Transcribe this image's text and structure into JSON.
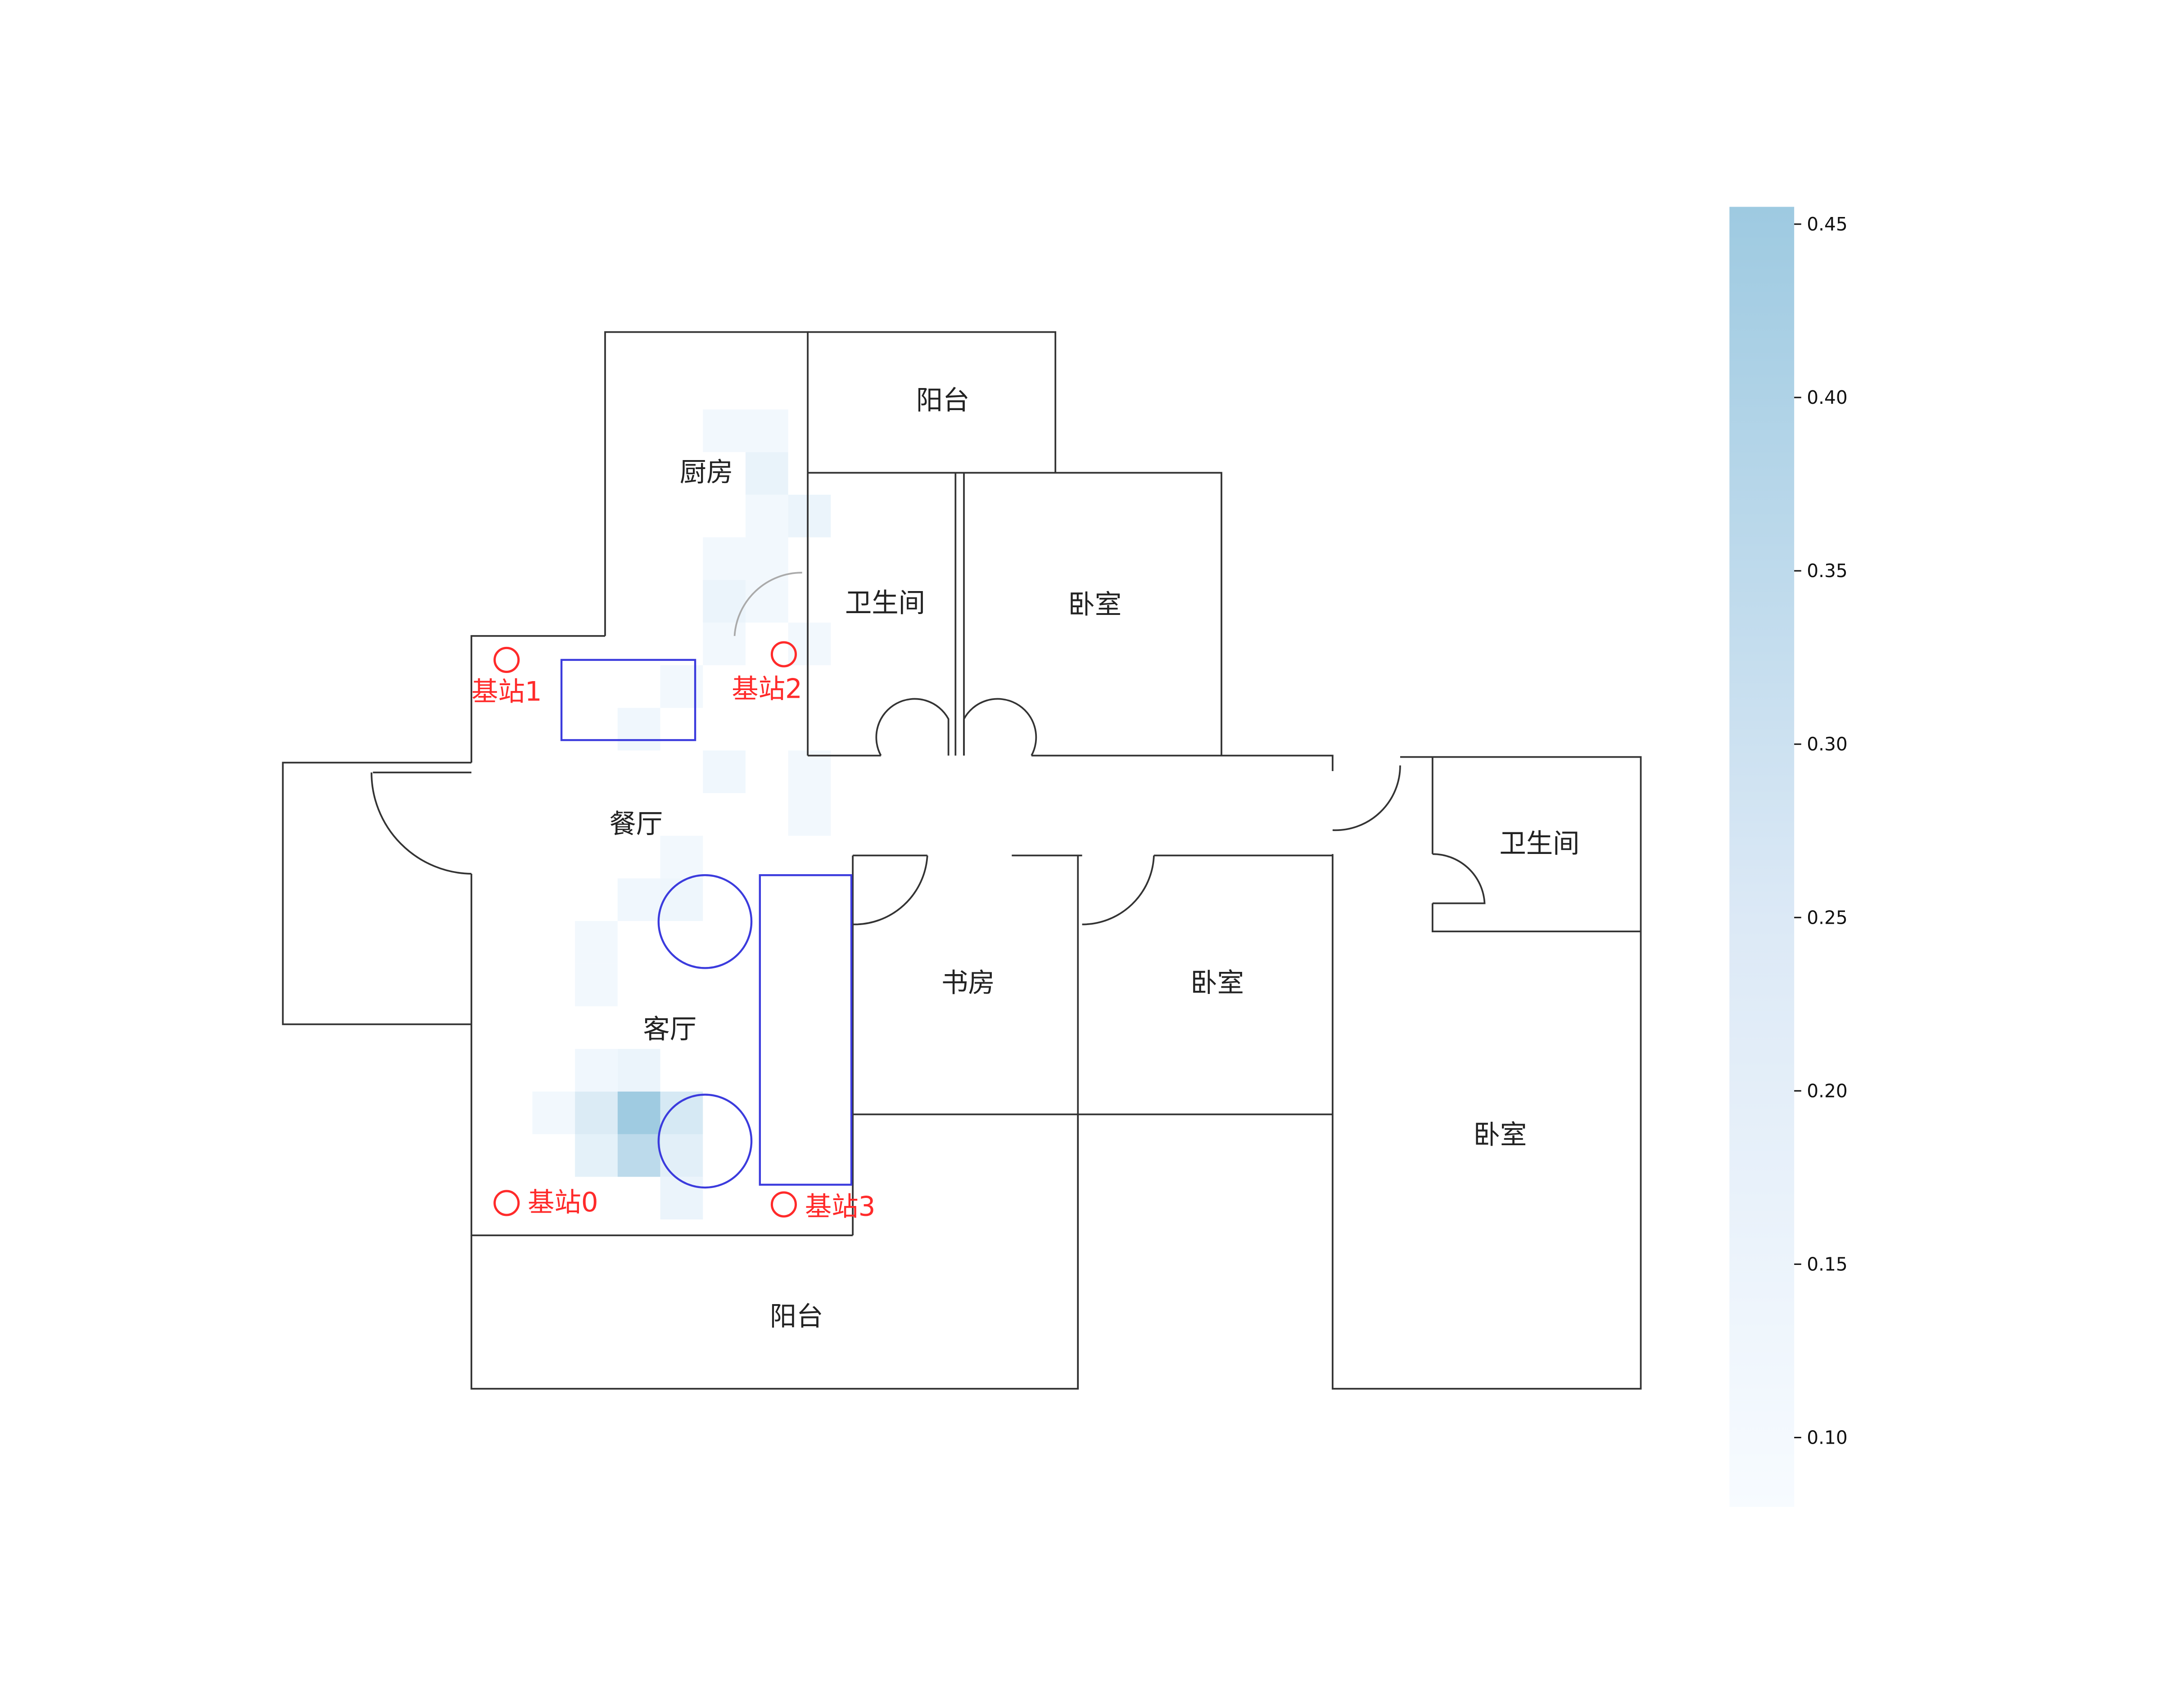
{
  "rooms": [
    {
      "key": "kitchen",
      "label": "厨房"
    },
    {
      "key": "balcony_top",
      "label": "阳台"
    },
    {
      "key": "bathroom_top",
      "label": "卫生间"
    },
    {
      "key": "bedroom_top",
      "label": "卧室"
    },
    {
      "key": "dining",
      "label": "餐厅"
    },
    {
      "key": "living",
      "label": "客厅"
    },
    {
      "key": "study",
      "label": "书房"
    },
    {
      "key": "bedroom_mid",
      "label": "卧室"
    },
    {
      "key": "bathroom_right",
      "label": "卫生间"
    },
    {
      "key": "bedroom_right",
      "label": "卧室"
    },
    {
      "key": "balcony_bottom",
      "label": "阳台"
    }
  ],
  "base_stations": [
    {
      "id": 0,
      "label": "基站0"
    },
    {
      "id": 1,
      "label": "基站1"
    },
    {
      "id": 2,
      "label": "基站2"
    },
    {
      "id": 3,
      "label": "基站3"
    }
  ],
  "colors": {
    "walls": "#333333",
    "furniture": "#3b3bdd",
    "station": "#ff2a2a",
    "heat_low": "#f7fbff",
    "heat_high": "#9ecae1"
  },
  "colorbar": {
    "min": 0.08,
    "max": 0.455,
    "ticks": [
      {
        "value": 0.45,
        "label": "0.45"
      },
      {
        "value": 0.4,
        "label": "0.40"
      },
      {
        "value": 0.35,
        "label": "0.35"
      },
      {
        "value": 0.3,
        "label": "0.30"
      },
      {
        "value": 0.25,
        "label": "0.25"
      },
      {
        "value": 0.2,
        "label": "0.20"
      },
      {
        "value": 0.15,
        "label": "0.15"
      },
      {
        "value": 0.1,
        "label": "0.10"
      }
    ]
  },
  "heatmap_cells": [
    {
      "col": 0,
      "row": 0,
      "value": 0.1
    },
    {
      "col": 1,
      "row": 0,
      "value": 0.1
    },
    {
      "col": 1,
      "row": 1,
      "value": 0.14
    },
    {
      "col": 1,
      "row": 2,
      "value": 0.1
    },
    {
      "col": 2,
      "row": 2,
      "value": 0.13
    },
    {
      "col": 0,
      "row": 3,
      "value": 0.1
    },
    {
      "col": 1,
      "row": 3,
      "value": 0.1
    },
    {
      "col": 0,
      "row": 4,
      "value": 0.13
    },
    {
      "col": 1,
      "row": 4,
      "value": 0.1
    },
    {
      "col": 0,
      "row": 5,
      "value": 0.1
    },
    {
      "col": 2,
      "row": 5,
      "value": 0.1
    },
    {
      "col": -1,
      "row": 6,
      "value": 0.1
    },
    {
      "col": -2,
      "row": 7,
      "value": 0.11
    },
    {
      "col": 0,
      "row": 8,
      "value": 0.11
    },
    {
      "col": 2,
      "row": 8,
      "value": 0.1
    },
    {
      "col": 2,
      "row": 9,
      "value": 0.1
    },
    {
      "col": -1,
      "row": 10,
      "value": 0.1
    },
    {
      "col": -2,
      "row": 11,
      "value": 0.11
    },
    {
      "col": -1,
      "row": 11,
      "value": 0.12
    },
    {
      "col": -3,
      "row": 12,
      "value": 0.1
    },
    {
      "col": -3,
      "row": 13,
      "value": 0.1
    },
    {
      "col": -3,
      "row": 15,
      "value": 0.11
    },
    {
      "col": -2,
      "row": 15,
      "value": 0.13
    },
    {
      "col": -4,
      "row": 16,
      "value": 0.1
    },
    {
      "col": -3,
      "row": 16,
      "value": 0.2
    },
    {
      "col": -2,
      "row": 16,
      "value": 0.45
    },
    {
      "col": -1,
      "row": 16,
      "value": 0.22
    },
    {
      "col": -3,
      "row": 17,
      "value": 0.16
    },
    {
      "col": -2,
      "row": 17,
      "value": 0.33
    },
    {
      "col": -1,
      "row": 17,
      "value": 0.17
    },
    {
      "col": -1,
      "row": 18,
      "value": 0.13
    }
  ]
}
